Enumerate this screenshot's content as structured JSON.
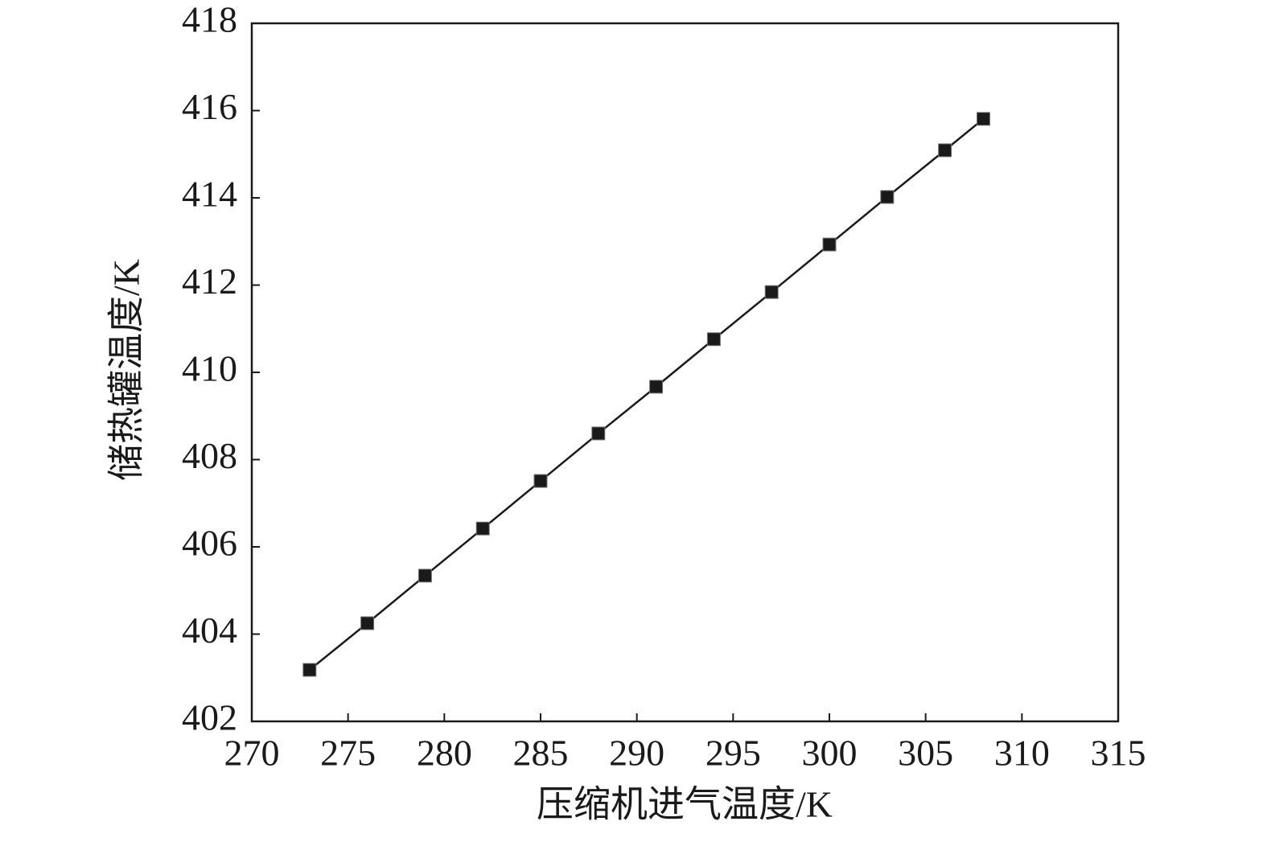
{
  "chart_data": {
    "type": "line",
    "x_label": "压缩机进气温度/K",
    "y_label": "储热罐温度/K",
    "x": [
      273,
      276,
      279,
      282,
      285,
      288,
      291,
      294,
      297,
      300,
      303,
      306,
      308
    ],
    "series": [
      {
        "color": "#1a1a1a",
        "values": [
          403.18,
          404.25,
          405.34,
          406.42,
          407.51,
          408.6,
          409.67,
          410.76,
          411.84,
          412.93,
          414.02,
          415.09,
          415.81
        ]
      }
    ],
    "xlim": [
      270,
      315
    ],
    "xticks": [
      270,
      275,
      280,
      285,
      290,
      295,
      300,
      305,
      310,
      315
    ],
    "ylim": [
      402,
      418
    ],
    "yticks": [
      402,
      404,
      406,
      408,
      410,
      412,
      414,
      416,
      418
    ],
    "grid": false
  }
}
